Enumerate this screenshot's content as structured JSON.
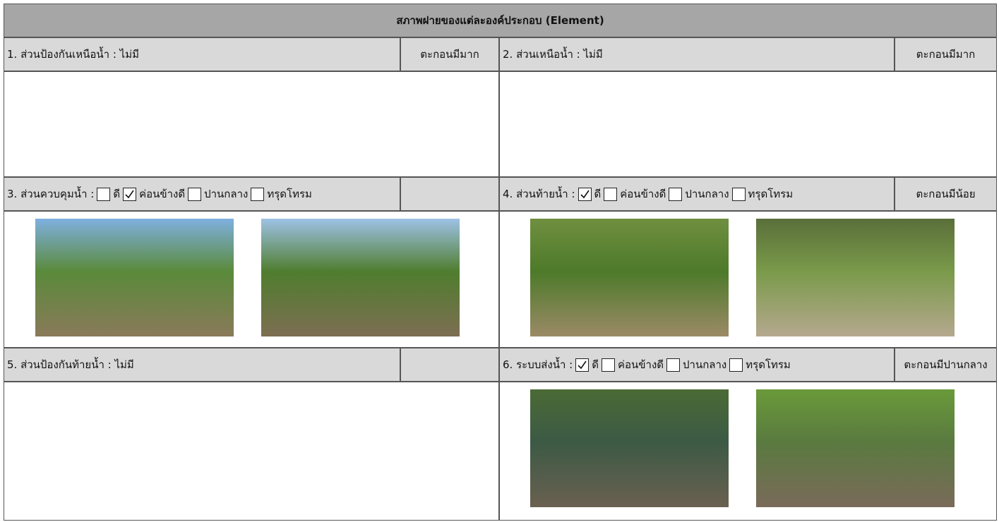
{
  "title": "สภาพฝายของแต่ละองค์ประกอบ (Element)",
  "sections": [
    {
      "label": "1. ส่วนป้องกันเหนือน้ำ : ไม่มี",
      "status": "ตะกอนมีมาก"
    },
    {
      "label": "2. ส่วนเหนือน้ำ : ไม่มี",
      "status": "ตะกอนมีมาก"
    },
    {
      "label": "3. ส่วนควบคุมน้ำ :",
      "options": [
        {
          "text": "ดี",
          "checked": false
        },
        {
          "text": "ค่อนข้างดี",
          "checked": true
        },
        {
          "text": "ปานกลาง",
          "checked": false
        },
        {
          "text": "ทรุดโทรม",
          "checked": false
        }
      ]
    },
    {
      "label": "4. ส่วนท้ายน้ำ :",
      "options": [
        {
          "text": "ดี",
          "checked": true
        },
        {
          "text": "ค่อนข้างดี",
          "checked": false
        },
        {
          "text": "ปานกลาง",
          "checked": false
        },
        {
          "text": "ทรุดโทรม",
          "checked": false
        }
      ],
      "status": "ตะกอนมีน้อย"
    },
    {
      "label": "5. ส่วนป้องกันท้ายน้ำ : ไม่มี"
    },
    {
      "label": "6. ระบบส่งน้ำ :",
      "options": [
        {
          "text": "ดี",
          "checked": true
        },
        {
          "text": "ค่อนข้างดี",
          "checked": false
        },
        {
          "text": "ปานกลาง",
          "checked": false
        },
        {
          "text": "ทรุดโทรม",
          "checked": false
        }
      ],
      "status": "ตะกอนมีปานกลาง"
    }
  ]
}
